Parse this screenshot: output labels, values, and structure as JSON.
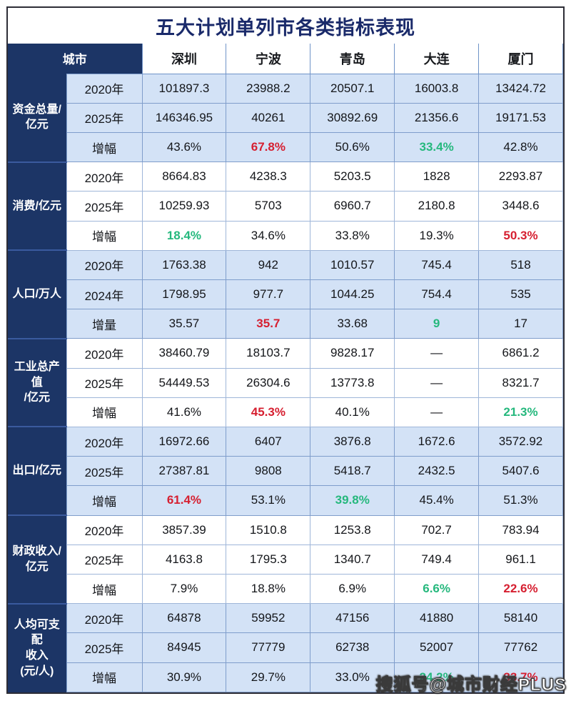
{
  "title": "五大计划单列市各类指标表现",
  "watermark": "搜狐号@城市财经PLUS",
  "colors": {
    "navy": "#1c3566",
    "light_blue_row": "#d3e2f6",
    "grid_line": "#7f9dcb",
    "highlight_red": "#d61f30",
    "highlight_green": "#25b87d",
    "title_text": "#1a2a6a"
  },
  "chart_data": {
    "type": "table",
    "title": "五大计划单列市各类指标表现",
    "corner_label": "城市",
    "columns": [
      "城市",
      "深圳",
      "宁波",
      "青岛",
      "大连",
      "厦门"
    ],
    "cities": [
      "深圳",
      "宁波",
      "青岛",
      "大连",
      "厦门"
    ],
    "row_groups": [
      {
        "indicator": "资金总量/\n亿元",
        "shade": "blue",
        "rows": [
          {
            "label": "2020年",
            "values": [
              "101897.3",
              "23988.2",
              "20507.1",
              "16003.8",
              "13424.72"
            ],
            "colors": [
              null,
              null,
              null,
              null,
              null
            ]
          },
          {
            "label": "2025年",
            "values": [
              "146346.95",
              "40261",
              "30892.69",
              "21356.6",
              "19171.53"
            ],
            "colors": [
              null,
              null,
              null,
              null,
              null
            ]
          },
          {
            "label": "增幅",
            "values": [
              "43.6%",
              "67.8%",
              "50.6%",
              "33.4%",
              "42.8%"
            ],
            "colors": [
              null,
              "red",
              null,
              "green",
              null
            ]
          }
        ]
      },
      {
        "indicator": "消费/亿元",
        "shade": "white",
        "rows": [
          {
            "label": "2020年",
            "values": [
              "8664.83",
              "4238.3",
              "5203.5",
              "1828",
              "2293.87"
            ],
            "colors": [
              null,
              null,
              null,
              null,
              null
            ]
          },
          {
            "label": "2025年",
            "values": [
              "10259.93",
              "5703",
              "6960.7",
              "2180.8",
              "3448.6"
            ],
            "colors": [
              null,
              null,
              null,
              null,
              null
            ]
          },
          {
            "label": "增幅",
            "values": [
              "18.4%",
              "34.6%",
              "33.8%",
              "19.3%",
              "50.3%"
            ],
            "colors": [
              "green",
              null,
              null,
              null,
              "red"
            ]
          }
        ]
      },
      {
        "indicator": "人口/万人",
        "shade": "blue",
        "rows": [
          {
            "label": "2020年",
            "values": [
              "1763.38",
              "942",
              "1010.57",
              "745.4",
              "518"
            ],
            "colors": [
              null,
              null,
              null,
              null,
              null
            ]
          },
          {
            "label": "2024年",
            "values": [
              "1798.95",
              "977.7",
              "1044.25",
              "754.4",
              "535"
            ],
            "colors": [
              null,
              null,
              null,
              null,
              null
            ]
          },
          {
            "label": "增量",
            "values": [
              "35.57",
              "35.7",
              "33.68",
              "9",
              "17"
            ],
            "colors": [
              null,
              "red",
              null,
              "green",
              null
            ]
          }
        ]
      },
      {
        "indicator": "工业总产值\n/亿元",
        "shade": "white",
        "rows": [
          {
            "label": "2020年",
            "values": [
              "38460.79",
              "18103.7",
              "9828.17",
              "—",
              "6861.2"
            ],
            "colors": [
              null,
              null,
              null,
              null,
              null
            ]
          },
          {
            "label": "2025年",
            "values": [
              "54449.53",
              "26304.6",
              "13773.8",
              "—",
              "8321.7"
            ],
            "colors": [
              null,
              null,
              null,
              null,
              null
            ]
          },
          {
            "label": "增幅",
            "values": [
              "41.6%",
              "45.3%",
              "40.1%",
              "—",
              "21.3%"
            ],
            "colors": [
              null,
              "red",
              null,
              null,
              "green"
            ]
          }
        ]
      },
      {
        "indicator": "出口/亿元",
        "shade": "blue",
        "rows": [
          {
            "label": "2020年",
            "values": [
              "16972.66",
              "6407",
              "3876.8",
              "1672.6",
              "3572.92"
            ],
            "colors": [
              null,
              null,
              null,
              null,
              null
            ]
          },
          {
            "label": "2025年",
            "values": [
              "27387.81",
              "9808",
              "5418.7",
              "2432.5",
              "5407.6"
            ],
            "colors": [
              null,
              null,
              null,
              null,
              null
            ]
          },
          {
            "label": "增幅",
            "values": [
              "61.4%",
              "53.1%",
              "39.8%",
              "45.4%",
              "51.3%"
            ],
            "colors": [
              "red",
              null,
              "green",
              null,
              null
            ]
          }
        ]
      },
      {
        "indicator": "财政收入/\n亿元",
        "shade": "white",
        "rows": [
          {
            "label": "2020年",
            "values": [
              "3857.39",
              "1510.8",
              "1253.8",
              "702.7",
              "783.94"
            ],
            "colors": [
              null,
              null,
              null,
              null,
              null
            ]
          },
          {
            "label": "2025年",
            "values": [
              "4163.8",
              "1795.3",
              "1340.7",
              "749.4",
              "961.1"
            ],
            "colors": [
              null,
              null,
              null,
              null,
              null
            ]
          },
          {
            "label": "增幅",
            "values": [
              "7.9%",
              "18.8%",
              "6.9%",
              "6.6%",
              "22.6%"
            ],
            "colors": [
              null,
              null,
              null,
              "green",
              "red"
            ]
          }
        ]
      },
      {
        "indicator": "人均可支配\n收入\n(元/人)",
        "shade": "blue",
        "rows": [
          {
            "label": "2020年",
            "values": [
              "64878",
              "59952",
              "47156",
              "41880",
              "58140"
            ],
            "colors": [
              null,
              null,
              null,
              null,
              null
            ]
          },
          {
            "label": "2025年",
            "values": [
              "84945",
              "77779",
              "62738",
              "52007",
              "77762"
            ],
            "colors": [
              null,
              null,
              null,
              null,
              null
            ]
          },
          {
            "label": "增幅",
            "values": [
              "30.9%",
              "29.7%",
              "33.0%",
              "24.2%",
              "33.7%"
            ],
            "colors": [
              null,
              null,
              null,
              "green",
              "red"
            ]
          }
        ]
      }
    ]
  }
}
